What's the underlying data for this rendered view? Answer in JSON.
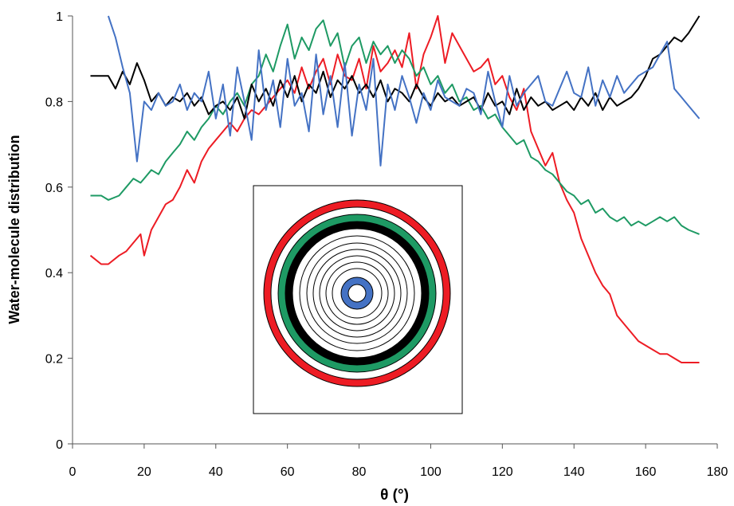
{
  "chart_data": {
    "type": "line",
    "title": "",
    "xlabel": "θ (°)",
    "ylabel": "Water-molecule distribution",
    "xlim": [
      0,
      180
    ],
    "ylim": [
      0,
      1
    ],
    "x_ticks": [
      "0",
      "20",
      "40",
      "60",
      "80",
      "100",
      "120",
      "140",
      "160",
      "180"
    ],
    "y_ticks": [
      "0",
      "0.2",
      "0.4",
      "0.6",
      "0.8",
      "1"
    ],
    "grid": false,
    "legend": "none",
    "series": [
      {
        "color": "#ed1c24",
        "x": [
          5,
          8,
          10,
          13,
          15,
          17,
          19,
          20,
          22,
          24,
          26,
          28,
          30,
          32,
          34,
          36,
          38,
          40,
          42,
          44,
          46,
          48,
          50,
          52,
          54,
          56,
          58,
          60,
          62,
          64,
          66,
          68,
          70,
          72,
          74,
          76,
          78,
          80,
          82,
          84,
          86,
          88,
          90,
          92,
          94,
          96,
          98,
          100,
          102,
          104,
          106,
          108,
          110,
          112,
          114,
          116,
          118,
          120,
          122,
          124,
          126,
          128,
          130,
          132,
          134,
          136,
          138,
          140,
          142,
          144,
          146,
          148,
          150,
          152,
          154,
          156,
          158,
          160,
          162,
          164,
          166,
          168,
          170,
          172,
          175
        ],
        "values": [
          0.44,
          0.42,
          0.42,
          0.44,
          0.45,
          0.47,
          0.49,
          0.44,
          0.5,
          0.53,
          0.56,
          0.57,
          0.6,
          0.64,
          0.61,
          0.66,
          0.69,
          0.71,
          0.73,
          0.75,
          0.73,
          0.76,
          0.78,
          0.77,
          0.79,
          0.81,
          0.83,
          0.85,
          0.82,
          0.88,
          0.83,
          0.87,
          0.9,
          0.84,
          0.91,
          0.86,
          0.85,
          0.9,
          0.83,
          0.93,
          0.87,
          0.89,
          0.92,
          0.88,
          0.96,
          0.83,
          0.91,
          0.95,
          1.0,
          0.89,
          0.96,
          0.93,
          0.9,
          0.87,
          0.88,
          0.9,
          0.84,
          0.86,
          0.81,
          0.78,
          0.83,
          0.73,
          0.69,
          0.65,
          0.68,
          0.61,
          0.57,
          0.54,
          0.48,
          0.44,
          0.4,
          0.37,
          0.35,
          0.3,
          0.28,
          0.26,
          0.24,
          0.23,
          0.22,
          0.21,
          0.21,
          0.2,
          0.19,
          0.19,
          0.19
        ]
      },
      {
        "color": "#1e9a64",
        "x": [
          5,
          8,
          10,
          13,
          15,
          17,
          19,
          20,
          22,
          24,
          26,
          28,
          30,
          32,
          34,
          36,
          38,
          40,
          42,
          44,
          46,
          48,
          50,
          52,
          54,
          56,
          58,
          60,
          62,
          64,
          66,
          68,
          70,
          72,
          74,
          76,
          78,
          80,
          82,
          84,
          86,
          88,
          90,
          92,
          94,
          96,
          98,
          100,
          102,
          104,
          106,
          108,
          110,
          112,
          114,
          116,
          118,
          120,
          122,
          124,
          126,
          128,
          130,
          132,
          134,
          136,
          138,
          140,
          142,
          144,
          146,
          148,
          150,
          152,
          154,
          156,
          158,
          160,
          162,
          164,
          166,
          168,
          170,
          172,
          175
        ],
        "values": [
          0.58,
          0.58,
          0.57,
          0.58,
          0.6,
          0.62,
          0.61,
          0.62,
          0.64,
          0.63,
          0.66,
          0.68,
          0.7,
          0.73,
          0.71,
          0.74,
          0.76,
          0.79,
          0.77,
          0.8,
          0.82,
          0.79,
          0.84,
          0.86,
          0.91,
          0.87,
          0.93,
          0.98,
          0.9,
          0.95,
          0.92,
          0.97,
          0.99,
          0.93,
          0.96,
          0.88,
          0.93,
          0.95,
          0.89,
          0.94,
          0.91,
          0.93,
          0.89,
          0.92,
          0.9,
          0.86,
          0.88,
          0.84,
          0.86,
          0.82,
          0.84,
          0.8,
          0.81,
          0.78,
          0.79,
          0.76,
          0.77,
          0.74,
          0.72,
          0.7,
          0.71,
          0.67,
          0.66,
          0.64,
          0.63,
          0.61,
          0.59,
          0.58,
          0.56,
          0.57,
          0.54,
          0.55,
          0.53,
          0.52,
          0.53,
          0.51,
          0.52,
          0.51,
          0.52,
          0.53,
          0.52,
          0.53,
          0.51,
          0.5,
          0.49
        ]
      },
      {
        "color": "#000000",
        "x": [
          5,
          8,
          10,
          12,
          14,
          16,
          18,
          20,
          22,
          24,
          26,
          28,
          30,
          32,
          34,
          36,
          38,
          40,
          42,
          44,
          46,
          48,
          50,
          52,
          54,
          56,
          58,
          60,
          62,
          64,
          66,
          68,
          70,
          72,
          74,
          76,
          78,
          80,
          82,
          84,
          86,
          88,
          90,
          92,
          94,
          96,
          98,
          100,
          102,
          104,
          106,
          108,
          110,
          112,
          114,
          116,
          118,
          120,
          122,
          124,
          126,
          128,
          130,
          132,
          134,
          136,
          138,
          140,
          142,
          144,
          146,
          148,
          150,
          152,
          154,
          156,
          158,
          160,
          162,
          164,
          166,
          168,
          170,
          172,
          175
        ],
        "values": [
          0.86,
          0.86,
          0.86,
          0.83,
          0.87,
          0.84,
          0.89,
          0.85,
          0.8,
          0.82,
          0.79,
          0.81,
          0.8,
          0.82,
          0.79,
          0.81,
          0.77,
          0.79,
          0.8,
          0.78,
          0.81,
          0.76,
          0.84,
          0.8,
          0.83,
          0.79,
          0.85,
          0.81,
          0.86,
          0.8,
          0.84,
          0.82,
          0.87,
          0.81,
          0.85,
          0.83,
          0.86,
          0.82,
          0.84,
          0.81,
          0.85,
          0.8,
          0.83,
          0.82,
          0.8,
          0.84,
          0.81,
          0.79,
          0.82,
          0.8,
          0.81,
          0.79,
          0.8,
          0.81,
          0.78,
          0.82,
          0.79,
          0.8,
          0.77,
          0.83,
          0.78,
          0.81,
          0.79,
          0.8,
          0.78,
          0.79,
          0.8,
          0.78,
          0.81,
          0.79,
          0.82,
          0.78,
          0.81,
          0.79,
          0.8,
          0.81,
          0.83,
          0.86,
          0.9,
          0.91,
          0.93,
          0.95,
          0.94,
          0.96,
          1.0
        ]
      },
      {
        "color": "#4472c4",
        "x": [
          10,
          12,
          14,
          16,
          18,
          20,
          22,
          24,
          26,
          28,
          30,
          32,
          34,
          36,
          38,
          40,
          42,
          44,
          46,
          48,
          50,
          52,
          54,
          56,
          58,
          60,
          62,
          64,
          66,
          68,
          70,
          72,
          74,
          76,
          78,
          80,
          82,
          84,
          86,
          88,
          90,
          92,
          94,
          96,
          98,
          100,
          102,
          104,
          106,
          108,
          110,
          112,
          114,
          116,
          118,
          120,
          122,
          124,
          126,
          128,
          130,
          132,
          134,
          136,
          138,
          140,
          142,
          144,
          146,
          148,
          150,
          152,
          154,
          156,
          158,
          160,
          162,
          164,
          166,
          168,
          170,
          172,
          175
        ],
        "values": [
          1.0,
          0.95,
          0.88,
          0.82,
          0.66,
          0.8,
          0.78,
          0.82,
          0.79,
          0.8,
          0.84,
          0.78,
          0.82,
          0.8,
          0.87,
          0.76,
          0.84,
          0.72,
          0.88,
          0.8,
          0.71,
          0.92,
          0.78,
          0.85,
          0.74,
          0.9,
          0.79,
          0.82,
          0.73,
          0.91,
          0.77,
          0.86,
          0.74,
          0.89,
          0.72,
          0.84,
          0.78,
          0.9,
          0.65,
          0.84,
          0.78,
          0.86,
          0.81,
          0.75,
          0.82,
          0.78,
          0.85,
          0.81,
          0.8,
          0.79,
          0.83,
          0.82,
          0.77,
          0.87,
          0.8,
          0.74,
          0.86,
          0.79,
          0.82,
          0.84,
          0.86,
          0.8,
          0.79,
          0.83,
          0.87,
          0.82,
          0.81,
          0.88,
          0.79,
          0.85,
          0.81,
          0.86,
          0.82,
          0.84,
          0.86,
          0.87,
          0.88,
          0.91,
          0.94,
          0.83,
          0.81,
          0.79,
          0.76
        ]
      }
    ]
  },
  "inset": {
    "ring_colors": [
      "#ed1c24",
      "#1e9a64",
      "#000000",
      "#4472c4"
    ]
  }
}
